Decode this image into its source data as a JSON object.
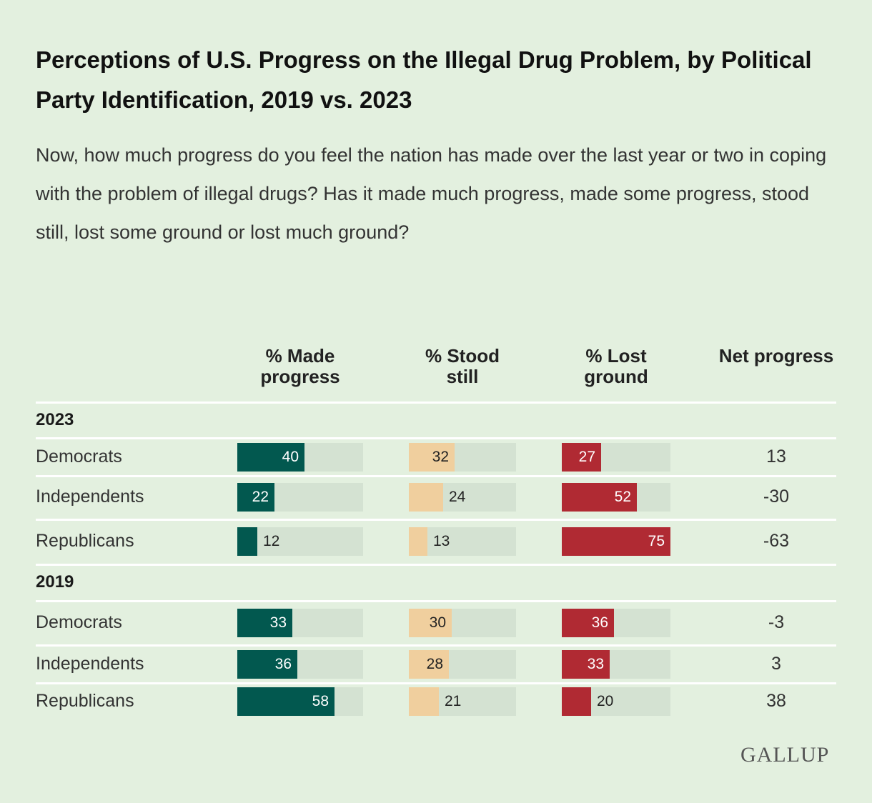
{
  "title": "Perceptions of U.S. Progress on the Illegal Drug Problem, by Political Party Identification, 2019 vs. 2023",
  "subtitle": "Now, how much progress do you feel the nation has made over the last year or two in coping with the problem of illegal drugs? Has it made much progress, made some progress, stood still, lost some ground or lost much ground?",
  "logo": "GALLUP",
  "colors": {
    "made": "#02584f",
    "still": "#f0cf9e",
    "lost": "#b02a33",
    "track": "#d4e2d2"
  },
  "chart_data": {
    "type": "table",
    "columns": [
      "% Made progress",
      "% Stood still",
      "% Lost ground",
      "Net progress"
    ],
    "sections": [
      {
        "label": "2023",
        "rows": [
          {
            "group": "Democrats",
            "made": 40,
            "still": 32,
            "lost": 27,
            "net": "13"
          },
          {
            "group": "Independents",
            "made": 22,
            "still": 24,
            "lost": 52,
            "net": "-30"
          },
          {
            "group": "Republicans",
            "made": 12,
            "still": 13,
            "lost": 75,
            "net": "-63"
          }
        ]
      },
      {
        "label": "2019",
        "rows": [
          {
            "group": "Democrats",
            "made": 33,
            "still": 30,
            "lost": 36,
            "net": "-3"
          },
          {
            "group": "Independents",
            "made": 36,
            "still": 28,
            "lost": 33,
            "net": "3"
          },
          {
            "group": "Republicans",
            "made": 58,
            "still": 21,
            "lost": 20,
            "net": "38"
          }
        ]
      }
    ],
    "scale_max": 75
  }
}
